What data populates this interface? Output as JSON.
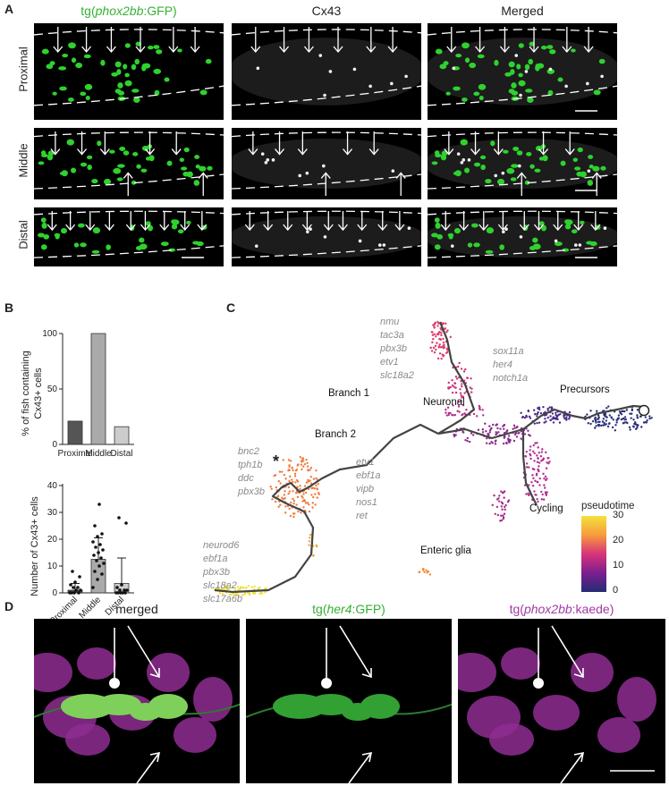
{
  "panels": {
    "A": "A",
    "B": "B",
    "C": "C",
    "D": "D"
  },
  "panelA": {
    "title_prefix": "tg(",
    "title_gene": "phox2bb",
    "title_suffix": ":GFP)",
    "col2": "Cx43",
    "col3": "Merged",
    "rows": [
      "Proximal",
      "Middle",
      "Distal"
    ],
    "colors": {
      "gfp": "#2fd12f",
      "title_green": "#35b135"
    }
  },
  "panelB": {
    "bar": {
      "ylabel_line1": "% of fish containing",
      "ylabel_line2": "Cx43+ cells",
      "categories": [
        "Proximal",
        "Middle",
        "Distal"
      ],
      "values": [
        21,
        100,
        16
      ],
      "colors": [
        "#555555",
        "#aaaaaa",
        "#cccccc"
      ],
      "yticks": [
        "0",
        "50",
        "100"
      ]
    },
    "dot": {
      "ylabel": "Number of Cx43+ cells",
      "categories": [
        "Proximal",
        "Middle",
        "Distal"
      ],
      "yticks": [
        "0",
        "10",
        "20",
        "30",
        "40"
      ]
    }
  },
  "chart_data": [
    {
      "type": "bar",
      "categories": [
        "Proximal",
        "Middle",
        "Distal"
      ],
      "values": [
        21,
        100,
        16
      ],
      "ylabel": "% of fish containing Cx43+ cells",
      "ylim": [
        0,
        100
      ]
    },
    {
      "type": "scatter",
      "categories": [
        "Proximal",
        "Middle",
        "Distal"
      ],
      "means": [
        1,
        12.5,
        3.5
      ],
      "ylabel": "Number of Cx43+ cells",
      "ylim": [
        0,
        40
      ]
    }
  ],
  "panelC": {
    "genes_top": [
      "nmu",
      "tac3a",
      "pbx3b",
      "etv1",
      "slc18a2"
    ],
    "genes_right": [
      "sox11a",
      "her4",
      "notch1a"
    ],
    "genes_left": [
      "bnc2",
      "tph1b",
      "ddc",
      "pbx3b"
    ],
    "genes_mid": [
      "etv1",
      "ebf1a",
      "vipb",
      "nos1",
      "ret"
    ],
    "genes_bottom": [
      "neurod6",
      "ebf1a",
      "pbx3b",
      "slc18a2",
      "slc17a6b"
    ],
    "labels": {
      "branch1": "Branch 1",
      "branch2": "Branch 2",
      "neuronal": "Neuronal",
      "precursors": "Precursors",
      "cycling": "Cycling",
      "enteric_glia": "Enteric glia",
      "star": "*"
    },
    "legend": {
      "title": "pseudotime",
      "ticks": [
        "30",
        "20",
        "10",
        "0"
      ]
    }
  },
  "panelD": {
    "cap1": "merged",
    "cap2_prefix": "tg(",
    "cap2_gene": "her4",
    "cap2_suffix": ":GFP)",
    "cap3_prefix": "tg(",
    "cap3_gene": "phox2bb",
    "cap3_suffix": ":kaede)",
    "colors": {
      "green": "#35b135",
      "magenta": "#a23aa2"
    }
  }
}
